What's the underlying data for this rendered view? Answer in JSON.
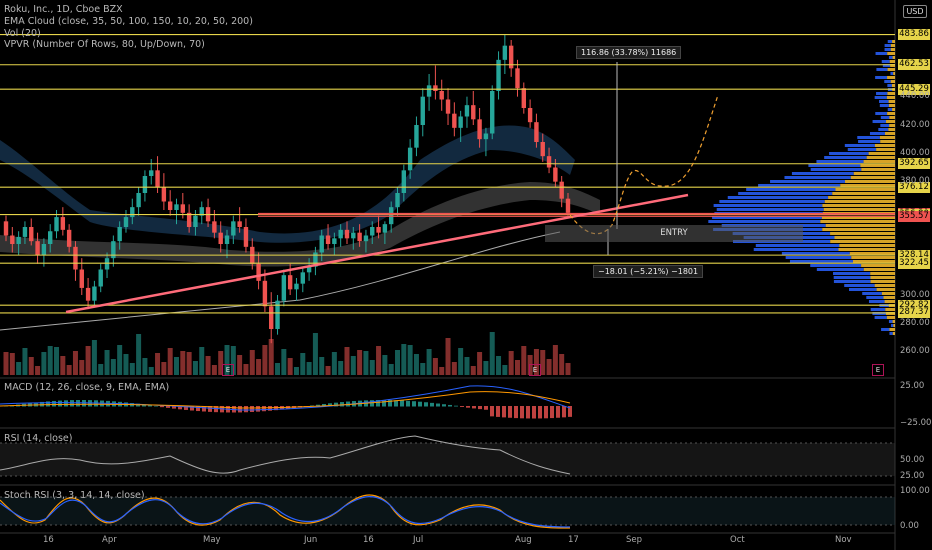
{
  "header": {
    "symbol_line": "Roku, Inc., 1D, Cboe BZX",
    "ema_cloud": "EMA Cloud (close, 35, 50, 100, 150, 10, 20, 50, 200)",
    "vol": "Vol (20)",
    "vpvr": "VPVR (Number Of Rows, 80, Up/Down, 70)"
  },
  "currency_button": "USD",
  "price_labels": [
    {
      "text": "483.86",
      "color": "#e6d44a"
    },
    {
      "text": "462.53",
      "color": "#e6d44a"
    },
    {
      "text": "445.29",
      "color": "#e6d44a"
    },
    {
      "text": "392.65",
      "color": "#e6d44a"
    },
    {
      "text": "376.12",
      "color": "#e6d44a"
    },
    {
      "text": "357.59",
      "color": "#ef5350"
    },
    {
      "text": "356.80",
      "color": "#e6d44a"
    },
    {
      "text": "355.57",
      "color": "#ef5350"
    },
    {
      "text": "328.14",
      "color": "#e6d44a"
    },
    {
      "text": "322.45",
      "color": "#e6d44a"
    },
    {
      "text": "292.82",
      "color": "#e6d44a"
    },
    {
      "text": "287.37",
      "color": "#e6d44a"
    }
  ],
  "grid_ticks": [
    "440.00",
    "420.00",
    "400.00",
    "380.00",
    "300.00",
    "280.00",
    "260.00"
  ],
  "macd": {
    "label": "MACD (12, 26, close, 9, EMA, EMA)",
    "ticks": [
      "25.00",
      "−25.00"
    ]
  },
  "rsi": {
    "label": "RSI (14, close)",
    "ticks": [
      "50.00",
      "25.00"
    ]
  },
  "stoch": {
    "label": "Stoch RSI (3, 3, 14, 14, close)",
    "ticks": [
      "100.00",
      "0.00"
    ]
  },
  "x_axis": [
    "16",
    "Apr",
    "May",
    "Jun",
    "16",
    "Jul",
    "Aug",
    "17",
    "Sep",
    "Oct",
    "Nov"
  ],
  "callouts": {
    "upper": "116.86 (33.78%) 11686",
    "lower": "−18.01 (−5.21%) −1801",
    "entry": "ENTRY"
  },
  "earnings_badge": "E",
  "colors": {
    "up": "#26a69a",
    "down": "#ef5350",
    "level": "#e6d44a",
    "trend": "#ff6b6b"
  },
  "chart_data": {
    "type": "candlestick",
    "interval": "1D",
    "symbol": "ROKU",
    "price_range": [
      250,
      490
    ],
    "ohlc": [
      [
        352,
        356,
        338,
        342
      ],
      [
        342,
        348,
        330,
        336
      ],
      [
        336,
        345,
        328,
        341
      ],
      [
        341,
        352,
        336,
        348
      ],
      [
        348,
        354,
        335,
        338
      ],
      [
        338,
        344,
        322,
        328
      ],
      [
        328,
        340,
        320,
        336
      ],
      [
        336,
        350,
        330,
        345
      ],
      [
        345,
        360,
        340,
        355
      ],
      [
        355,
        362,
        342,
        346
      ],
      [
        346,
        350,
        330,
        334
      ],
      [
        334,
        338,
        310,
        318
      ],
      [
        318,
        326,
        300,
        305
      ],
      [
        305,
        312,
        290,
        296
      ],
      [
        296,
        310,
        292,
        306
      ],
      [
        306,
        322,
        302,
        318
      ],
      [
        318,
        330,
        312,
        326
      ],
      [
        326,
        342,
        320,
        338
      ],
      [
        338,
        352,
        332,
        348
      ],
      [
        348,
        360,
        344,
        355
      ],
      [
        355,
        368,
        350,
        362
      ],
      [
        362,
        376,
        356,
        372
      ],
      [
        372,
        388,
        366,
        384
      ],
      [
        384,
        396,
        378,
        388
      ],
      [
        388,
        398,
        372,
        376
      ],
      [
        376,
        386,
        360,
        366
      ],
      [
        366,
        374,
        356,
        360
      ],
      [
        360,
        368,
        350,
        364
      ],
      [
        364,
        372,
        354,
        358
      ],
      [
        358,
        364,
        344,
        348
      ],
      [
        348,
        360,
        342,
        356
      ],
      [
        356,
        366,
        350,
        362
      ],
      [
        362,
        368,
        348,
        352
      ],
      [
        352,
        360,
        340,
        344
      ],
      [
        344,
        352,
        330,
        336
      ],
      [
        336,
        346,
        326,
        342
      ],
      [
        342,
        356,
        336,
        352
      ],
      [
        352,
        362,
        344,
        348
      ],
      [
        348,
        354,
        330,
        334
      ],
      [
        334,
        340,
        318,
        322
      ],
      [
        322,
        330,
        304,
        310
      ],
      [
        310,
        318,
        288,
        292
      ],
      [
        292,
        302,
        266,
        276
      ],
      [
        276,
        300,
        272,
        296
      ],
      [
        296,
        318,
        292,
        314
      ],
      [
        314,
        322,
        300,
        304
      ],
      [
        304,
        312,
        296,
        308
      ],
      [
        308,
        320,
        302,
        316
      ],
      [
        316,
        326,
        310,
        320
      ],
      [
        320,
        334,
        314,
        330
      ],
      [
        330,
        346,
        324,
        342
      ],
      [
        342,
        350,
        332,
        336
      ],
      [
        336,
        344,
        328,
        340
      ],
      [
        340,
        350,
        334,
        346
      ],
      [
        346,
        352,
        336,
        340
      ],
      [
        340,
        348,
        332,
        344
      ],
      [
        344,
        350,
        334,
        338
      ],
      [
        338,
        346,
        330,
        342
      ],
      [
        342,
        352,
        336,
        348
      ],
      [
        348,
        356,
        340,
        344
      ],
      [
        344,
        352,
        336,
        350
      ],
      [
        350,
        366,
        344,
        362
      ],
      [
        362,
        376,
        356,
        372
      ],
      [
        372,
        392,
        366,
        388
      ],
      [
        388,
        410,
        382,
        404
      ],
      [
        404,
        426,
        398,
        420
      ],
      [
        420,
        446,
        412,
        440
      ],
      [
        440,
        456,
        430,
        448
      ],
      [
        448,
        462,
        438,
        444
      ],
      [
        444,
        452,
        430,
        438
      ],
      [
        438,
        446,
        420,
        428
      ],
      [
        428,
        436,
        412,
        418
      ],
      [
        418,
        430,
        408,
        426
      ],
      [
        426,
        440,
        418,
        434
      ],
      [
        434,
        444,
        420,
        424
      ],
      [
        424,
        432,
        404,
        410
      ],
      [
        410,
        418,
        398,
        414
      ],
      [
        414,
        448,
        410,
        444
      ],
      [
        444,
        472,
        438,
        466
      ],
      [
        466,
        484,
        456,
        476
      ],
      [
        476,
        480,
        454,
        460
      ],
      [
        460,
        466,
        440,
        446
      ],
      [
        446,
        450,
        428,
        432
      ],
      [
        432,
        438,
        418,
        422
      ],
      [
        422,
        428,
        404,
        408
      ],
      [
        408,
        414,
        394,
        398
      ],
      [
        398,
        404,
        386,
        390
      ],
      [
        390,
        396,
        376,
        380
      ],
      [
        380,
        384,
        362,
        368
      ],
      [
        368,
        372,
        356,
        358
      ]
    ],
    "levels": [
      483.86,
      462.53,
      445.29,
      392.65,
      376.12,
      357.59,
      356.8,
      355.57,
      328.14,
      322.45,
      292.82,
      287.37
    ],
    "annotations": [
      "ENTRY",
      "116.86 (33.78%) 11686",
      "−18.01 (−5.21%) −1801"
    ]
  }
}
